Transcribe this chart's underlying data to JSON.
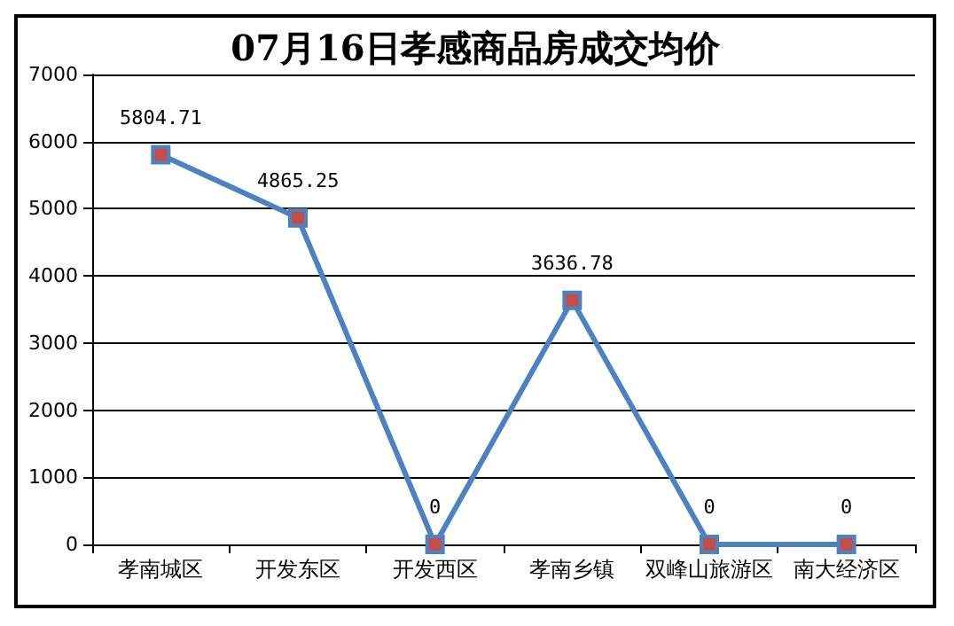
{
  "chart_data": {
    "type": "line",
    "title": "07月16日孝感商品房成交均价",
    "categories": [
      "孝南城区",
      "开发东区",
      "开发西区",
      "孝南乡镇",
      "双峰山旅游区",
      "南大经济区"
    ],
    "series": [
      {
        "color": "#4f81bd",
        "values": [
          5804.71,
          4865.25,
          0,
          3636.78,
          0,
          0
        ]
      }
    ],
    "ylim": [
      0,
      7000
    ],
    "yticks": [
      0,
      1000,
      2000,
      3000,
      4000,
      5000,
      6000,
      7000
    ],
    "grid": "y",
    "marker": "square",
    "line_style": "solid",
    "data_labels": true
  }
}
